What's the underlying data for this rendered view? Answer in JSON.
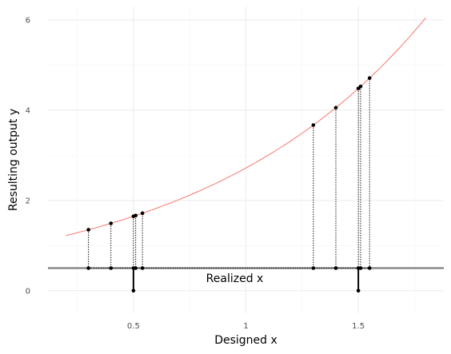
{
  "chart_data": {
    "type": "scatter",
    "title": "",
    "xlabel": "Designed x",
    "ylabel": "Resulting output y",
    "xlim": [
      0.12,
      1.88
    ],
    "ylim": [
      -0.5,
      6.3
    ],
    "x_ticks": [
      0.5,
      1,
      1.5
    ],
    "x_tick_labels": [
      "0.5",
      "1",
      "1.5"
    ],
    "y_ticks": [
      0,
      2,
      4,
      6
    ],
    "y_tick_labels": [
      "0",
      "2",
      "4",
      "6"
    ],
    "grid": true,
    "curve": {
      "color": "#f8766d",
      "x_start": 0.2,
      "x_end": 1.8,
      "points": [
        [
          0.2,
          1.22
        ],
        [
          0.4,
          1.49
        ],
        [
          0.6,
          1.82
        ],
        [
          0.8,
          2.23
        ],
        [
          1.0,
          2.72
        ],
        [
          1.2,
          3.32
        ],
        [
          1.4,
          4.06
        ],
        [
          1.6,
          4.95
        ],
        [
          1.8,
          6.05
        ]
      ]
    },
    "designed_x": [
      0.3,
      0.4,
      0.5,
      0.51,
      0.54,
      1.3,
      1.4,
      1.5,
      1.51,
      1.55
    ],
    "realized_line_y": 0.5,
    "realized_label": "Realized x",
    "realized_label_x": 1.0,
    "realized_label_y": 0.28,
    "spikes": [
      {
        "x": 0.5,
        "y": 0
      },
      {
        "x": 1.5,
        "y": 0
      }
    ],
    "colors": {
      "curve": "#f8766d",
      "points": "#000000",
      "realized_line": "#808080",
      "grid_major": "#ebebeb",
      "grid_minor": "#f5f5f5"
    }
  }
}
